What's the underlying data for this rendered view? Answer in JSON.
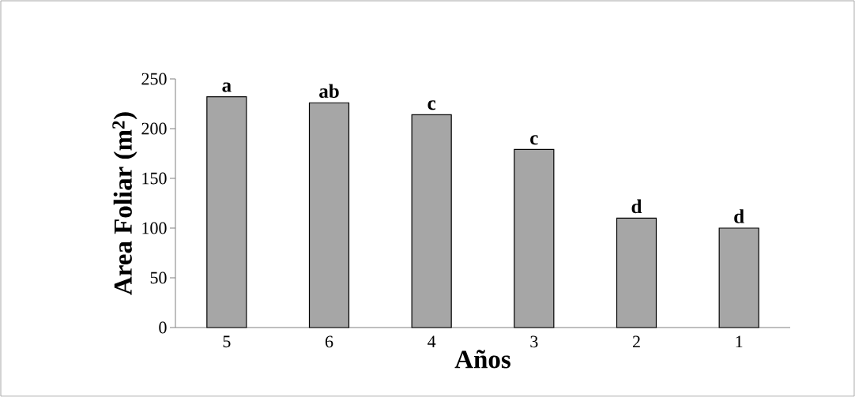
{
  "chart_data": {
    "type": "bar",
    "xlabel": "Años",
    "ylabel": "Area Foliar (m$^{2}$)",
    "categories": [
      "5",
      "6",
      "4",
      "3",
      "2",
      "1"
    ],
    "values": [
      232,
      226,
      214,
      179,
      110,
      100
    ],
    "color": "#a6a6a6",
    "ylim": [
      0,
      250
    ],
    "yticks": [
      0,
      50,
      100,
      150,
      200,
      250
    ],
    "annotations": [
      {
        "text": "a",
        "x": "5",
        "y": 232
      },
      {
        "text": "ab",
        "x": "6",
        "y": 226
      },
      {
        "text": "c",
        "x": "4",
        "y": 214
      },
      {
        "text": "c",
        "x": "3",
        "y": 179
      },
      {
        "text": "d",
        "x": "2",
        "y": 110
      },
      {
        "text": "d",
        "x": "1",
        "y": 100
      }
    ]
  }
}
